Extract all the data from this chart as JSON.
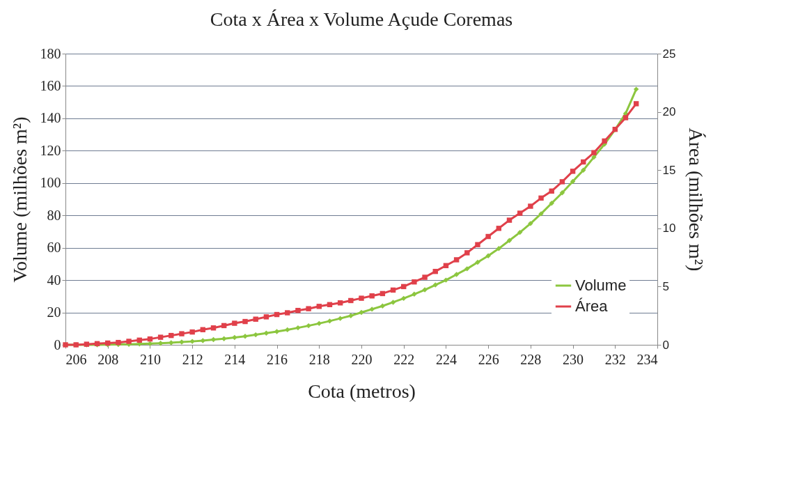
{
  "chart_data": {
    "type": "line",
    "title": "Cota x Área x Volume Açude Coremas",
    "xlabel": "Cota (metros)",
    "ylabel": "Volume (milhões m²)",
    "y2label": "Área (milhões m²)",
    "x": [
      206,
      206.5,
      207,
      207.5,
      208,
      208.5,
      209,
      209.5,
      210,
      210.5,
      211,
      211.5,
      212,
      212.5,
      213,
      213.5,
      214,
      214.5,
      215,
      215.5,
      216,
      216.5,
      217,
      217.5,
      218,
      218.5,
      219,
      219.5,
      220,
      220.5,
      221,
      221.5,
      222,
      222.5,
      223,
      223.5,
      224,
      224.5,
      225,
      225.5,
      226,
      226.5,
      227,
      227.5,
      228,
      228.5,
      229,
      229.5,
      230,
      230.5,
      231,
      231.5,
      232,
      232.5,
      233
    ],
    "series": [
      {
        "name": "Volume",
        "color": "#8cc63f",
        "marker": "diamond",
        "values": [
          0,
          0,
          0,
          0,
          0.1,
          0.2,
          0.3,
          0.5,
          0.7,
          1.0,
          1.3,
          1.7,
          2.1,
          2.6,
          3.2,
          3.8,
          4.5,
          5.3,
          6.2,
          7.2,
          8.2,
          9.3,
          10.5,
          11.8,
          13.2,
          14.7,
          16.3,
          18.0,
          20,
          22,
          24,
          26.3,
          28.7,
          31.3,
          34,
          37,
          40,
          43.5,
          47,
          51,
          55,
          59.5,
          64.5,
          69.5,
          75,
          81,
          87.5,
          94,
          101,
          108,
          116,
          124,
          133,
          143,
          158
        ]
      },
      {
        "name": "Área",
        "color": "#e0404a",
        "marker": "square",
        "axis": "y2",
        "values": [
          0,
          0,
          0.05,
          0.1,
          0.15,
          0.2,
          0.3,
          0.4,
          0.5,
          0.65,
          0.8,
          0.95,
          1.1,
          1.3,
          1.45,
          1.65,
          1.85,
          2.0,
          2.2,
          2.4,
          2.6,
          2.75,
          2.95,
          3.1,
          3.3,
          3.45,
          3.6,
          3.8,
          4.0,
          4.2,
          4.4,
          4.7,
          5.0,
          5.4,
          5.8,
          6.3,
          6.8,
          7.3,
          7.9,
          8.6,
          9.3,
          10.0,
          10.7,
          11.3,
          11.9,
          12.6,
          13.2,
          14.0,
          14.9,
          15.7,
          16.5,
          17.5,
          18.5,
          19.5,
          20.7
        ]
      }
    ],
    "xlim": [
      206,
      234
    ],
    "xticks": [
      206,
      208,
      210,
      212,
      214,
      216,
      218,
      220,
      222,
      224,
      226,
      228,
      230,
      232,
      234
    ],
    "ylim": [
      0,
      180
    ],
    "yticks": [
      0,
      20,
      40,
      60,
      80,
      100,
      120,
      140,
      160,
      180
    ],
    "y2lim": [
      0,
      25
    ],
    "y2ticks": [
      0,
      5,
      10,
      15,
      20,
      25
    ],
    "grid": "y",
    "legend": "bottom right"
  }
}
